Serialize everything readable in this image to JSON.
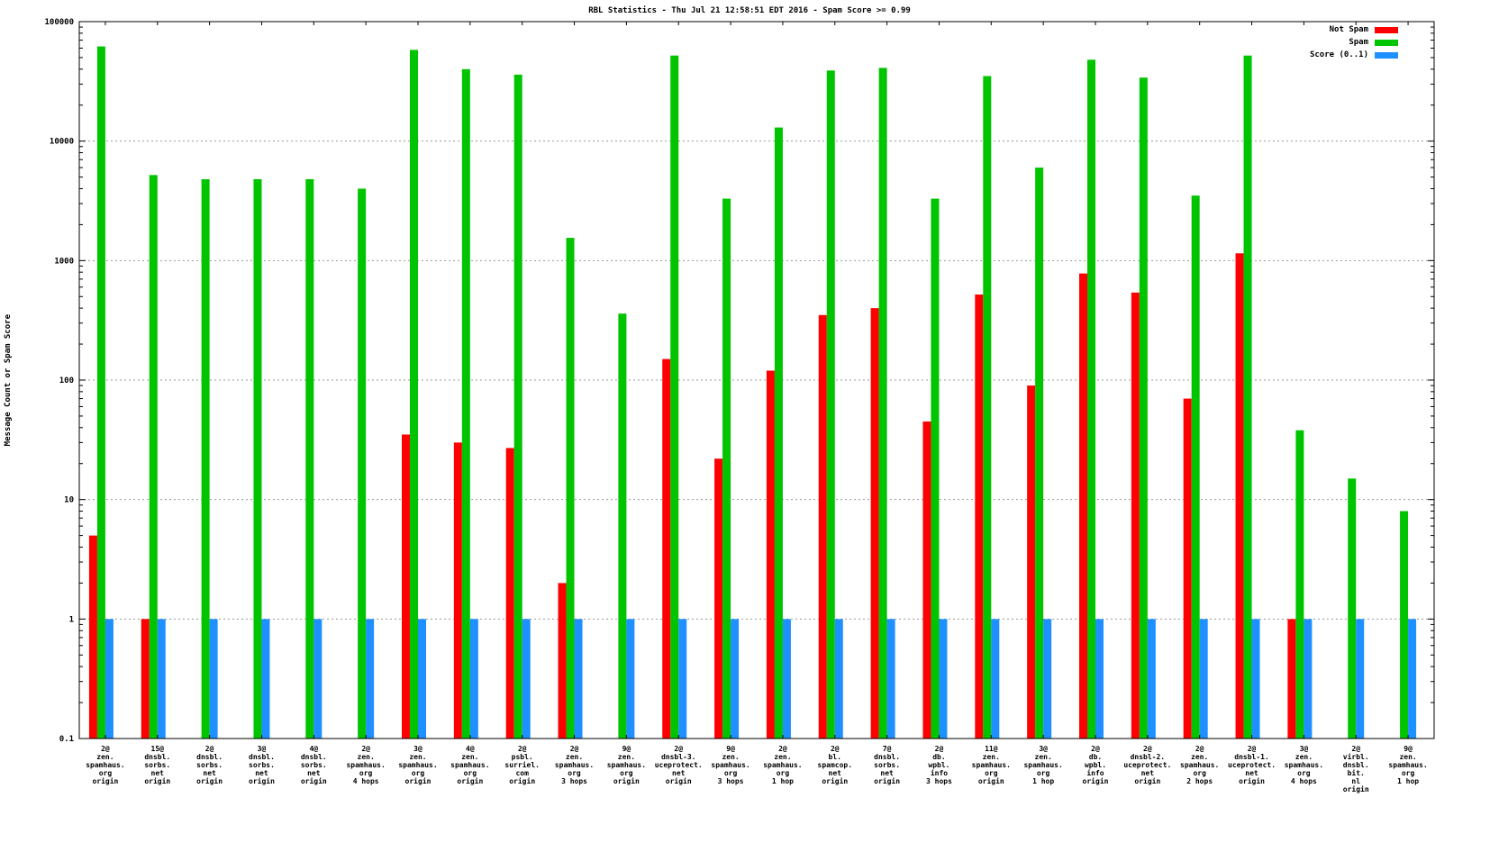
{
  "title": "RBL Statistics - Thu Jul 21 12:58:51 EDT 2016 - Spam Score >= 0.99",
  "legend": [
    {
      "label": "Not Spam",
      "color": "#ff0000"
    },
    {
      "label": "Spam",
      "color": "#00c400"
    },
    {
      "label": "Score (0..1)",
      "color": "#1e90ff"
    }
  ],
  "chart_data": {
    "type": "bar",
    "title": "RBL Statistics - Thu Jul 21 12:58:51 EDT 2016 - Spam Score >= 0.99",
    "xlabel": "",
    "ylabel": "Message Count or Spam Score",
    "yscale": "log",
    "ylim": [
      0.1,
      100000
    ],
    "yticks": [
      0.1,
      1,
      10,
      100,
      1000,
      10000,
      100000
    ],
    "ytick_labels": [
      "0.1",
      "1",
      "10",
      "100",
      "1000",
      "10000",
      "100000"
    ],
    "grid": true,
    "legend_position": "top-right",
    "categories": [
      [
        "2@",
        "zen.",
        "spamhaus.",
        "org",
        "origin"
      ],
      [
        "15@",
        "dnsbl.",
        "sorbs.",
        "net",
        "origin"
      ],
      [
        "2@",
        "dnsbl.",
        "sorbs.",
        "net",
        "origin"
      ],
      [
        "3@",
        "dnsbl.",
        "sorbs.",
        "net",
        "origin"
      ],
      [
        "4@",
        "dnsbl.",
        "sorbs.",
        "net",
        "origin"
      ],
      [
        "2@",
        "zen.",
        "spamhaus.",
        "org",
        "4 hops"
      ],
      [
        "3@",
        "zen.",
        "spamhaus.",
        "org",
        "origin"
      ],
      [
        "4@",
        "zen.",
        "spamhaus.",
        "org",
        "origin"
      ],
      [
        "2@",
        "psbl.",
        "surriel.",
        "com",
        "origin"
      ],
      [
        "2@",
        "zen.",
        "spamhaus.",
        "org",
        "3 hops"
      ],
      [
        "9@",
        "zen.",
        "spamhaus.",
        "org",
        "origin"
      ],
      [
        "2@",
        "dnsbl-3.",
        "uceprotect.",
        "net",
        "origin"
      ],
      [
        "9@",
        "zen.",
        "spamhaus.",
        "org",
        "3 hops"
      ],
      [
        "2@",
        "zen.",
        "spamhaus.",
        "org",
        "1 hop"
      ],
      [
        "2@",
        "bl.",
        "spamcop.",
        "net",
        "origin"
      ],
      [
        "7@",
        "dnsbl.",
        "sorbs.",
        "net",
        "origin"
      ],
      [
        "2@",
        "db.",
        "wpbl.",
        "info",
        "3 hops"
      ],
      [
        "11@",
        "zen.",
        "spamhaus.",
        "org",
        "origin"
      ],
      [
        "3@",
        "zen.",
        "spamhaus.",
        "org",
        "1 hop"
      ],
      [
        "2@",
        "db.",
        "wpbl.",
        "info",
        "origin"
      ],
      [
        "2@",
        "dnsbl-2.",
        "uceprotect.",
        "net",
        "origin"
      ],
      [
        "2@",
        "zen.",
        "spamhaus.",
        "org",
        "2 hops"
      ],
      [
        "2@",
        "dnsbl-1.",
        "uceprotect.",
        "net",
        "origin"
      ],
      [
        "3@",
        "zen.",
        "spamhaus.",
        "org",
        "4 hops"
      ],
      [
        "2@",
        "virbl.",
        "dnsbl.",
        "bit.",
        "nl",
        "origin"
      ],
      [
        "9@",
        "zen.",
        "spamhaus.",
        "org",
        "1 hop"
      ]
    ],
    "series": [
      {
        "name": "Not Spam",
        "color": "#ff0000",
        "values": [
          5,
          1,
          null,
          null,
          null,
          null,
          35,
          30,
          27,
          2,
          null,
          150,
          22,
          120,
          350,
          400,
          45,
          520,
          90,
          780,
          540,
          70,
          1150,
          1,
          null,
          null
        ]
      },
      {
        "name": "Spam",
        "color": "#00c400",
        "values": [
          62000,
          5200,
          4800,
          4800,
          4800,
          4000,
          58000,
          40000,
          36000,
          1550,
          360,
          52000,
          3300,
          13000,
          39000,
          41000,
          3300,
          35000,
          6000,
          48000,
          34000,
          3500,
          52000,
          38,
          15,
          8
        ]
      },
      {
        "name": "Score (0..1)",
        "color": "#1e90ff",
        "values": [
          1,
          1,
          1,
          1,
          1,
          1,
          1,
          1,
          1,
          1,
          1,
          1,
          1,
          1,
          1,
          1,
          1,
          1,
          1,
          1,
          1,
          1,
          1,
          1,
          1,
          1
        ]
      }
    ]
  }
}
